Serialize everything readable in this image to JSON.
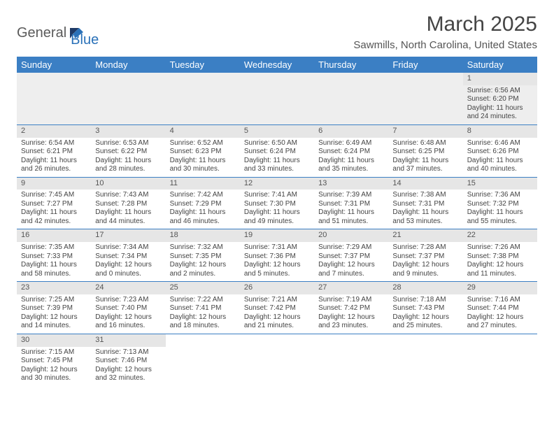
{
  "logo": {
    "part1": "General",
    "part2": "Blue"
  },
  "title": "March 2025",
  "location": "Sawmills, North Carolina, United States",
  "colors": {
    "header_bg": "#3b7fc4",
    "header_text": "#ffffff",
    "daynum_bg": "#e6e6e6",
    "border": "#3b7fc4",
    "logo_gray": "#5a5a5a",
    "logo_blue": "#2a71b8"
  },
  "day_headers": [
    "Sunday",
    "Monday",
    "Tuesday",
    "Wednesday",
    "Thursday",
    "Friday",
    "Saturday"
  ],
  "weeks": [
    [
      null,
      null,
      null,
      null,
      null,
      null,
      {
        "n": "1",
        "sr": "Sunrise: 6:56 AM",
        "ss": "Sunset: 6:20 PM",
        "dl": "Daylight: 11 hours and 24 minutes."
      }
    ],
    [
      {
        "n": "2",
        "sr": "Sunrise: 6:54 AM",
        "ss": "Sunset: 6:21 PM",
        "dl": "Daylight: 11 hours and 26 minutes."
      },
      {
        "n": "3",
        "sr": "Sunrise: 6:53 AM",
        "ss": "Sunset: 6:22 PM",
        "dl": "Daylight: 11 hours and 28 minutes."
      },
      {
        "n": "4",
        "sr": "Sunrise: 6:52 AM",
        "ss": "Sunset: 6:23 PM",
        "dl": "Daylight: 11 hours and 30 minutes."
      },
      {
        "n": "5",
        "sr": "Sunrise: 6:50 AM",
        "ss": "Sunset: 6:24 PM",
        "dl": "Daylight: 11 hours and 33 minutes."
      },
      {
        "n": "6",
        "sr": "Sunrise: 6:49 AM",
        "ss": "Sunset: 6:24 PM",
        "dl": "Daylight: 11 hours and 35 minutes."
      },
      {
        "n": "7",
        "sr": "Sunrise: 6:48 AM",
        "ss": "Sunset: 6:25 PM",
        "dl": "Daylight: 11 hours and 37 minutes."
      },
      {
        "n": "8",
        "sr": "Sunrise: 6:46 AM",
        "ss": "Sunset: 6:26 PM",
        "dl": "Daylight: 11 hours and 40 minutes."
      }
    ],
    [
      {
        "n": "9",
        "sr": "Sunrise: 7:45 AM",
        "ss": "Sunset: 7:27 PM",
        "dl": "Daylight: 11 hours and 42 minutes."
      },
      {
        "n": "10",
        "sr": "Sunrise: 7:43 AM",
        "ss": "Sunset: 7:28 PM",
        "dl": "Daylight: 11 hours and 44 minutes."
      },
      {
        "n": "11",
        "sr": "Sunrise: 7:42 AM",
        "ss": "Sunset: 7:29 PM",
        "dl": "Daylight: 11 hours and 46 minutes."
      },
      {
        "n": "12",
        "sr": "Sunrise: 7:41 AM",
        "ss": "Sunset: 7:30 PM",
        "dl": "Daylight: 11 hours and 49 minutes."
      },
      {
        "n": "13",
        "sr": "Sunrise: 7:39 AM",
        "ss": "Sunset: 7:31 PM",
        "dl": "Daylight: 11 hours and 51 minutes."
      },
      {
        "n": "14",
        "sr": "Sunrise: 7:38 AM",
        "ss": "Sunset: 7:31 PM",
        "dl": "Daylight: 11 hours and 53 minutes."
      },
      {
        "n": "15",
        "sr": "Sunrise: 7:36 AM",
        "ss": "Sunset: 7:32 PM",
        "dl": "Daylight: 11 hours and 55 minutes."
      }
    ],
    [
      {
        "n": "16",
        "sr": "Sunrise: 7:35 AM",
        "ss": "Sunset: 7:33 PM",
        "dl": "Daylight: 11 hours and 58 minutes."
      },
      {
        "n": "17",
        "sr": "Sunrise: 7:34 AM",
        "ss": "Sunset: 7:34 PM",
        "dl": "Daylight: 12 hours and 0 minutes."
      },
      {
        "n": "18",
        "sr": "Sunrise: 7:32 AM",
        "ss": "Sunset: 7:35 PM",
        "dl": "Daylight: 12 hours and 2 minutes."
      },
      {
        "n": "19",
        "sr": "Sunrise: 7:31 AM",
        "ss": "Sunset: 7:36 PM",
        "dl": "Daylight: 12 hours and 5 minutes."
      },
      {
        "n": "20",
        "sr": "Sunrise: 7:29 AM",
        "ss": "Sunset: 7:37 PM",
        "dl": "Daylight: 12 hours and 7 minutes."
      },
      {
        "n": "21",
        "sr": "Sunrise: 7:28 AM",
        "ss": "Sunset: 7:37 PM",
        "dl": "Daylight: 12 hours and 9 minutes."
      },
      {
        "n": "22",
        "sr": "Sunrise: 7:26 AM",
        "ss": "Sunset: 7:38 PM",
        "dl": "Daylight: 12 hours and 11 minutes."
      }
    ],
    [
      {
        "n": "23",
        "sr": "Sunrise: 7:25 AM",
        "ss": "Sunset: 7:39 PM",
        "dl": "Daylight: 12 hours and 14 minutes."
      },
      {
        "n": "24",
        "sr": "Sunrise: 7:23 AM",
        "ss": "Sunset: 7:40 PM",
        "dl": "Daylight: 12 hours and 16 minutes."
      },
      {
        "n": "25",
        "sr": "Sunrise: 7:22 AM",
        "ss": "Sunset: 7:41 PM",
        "dl": "Daylight: 12 hours and 18 minutes."
      },
      {
        "n": "26",
        "sr": "Sunrise: 7:21 AM",
        "ss": "Sunset: 7:42 PM",
        "dl": "Daylight: 12 hours and 21 minutes."
      },
      {
        "n": "27",
        "sr": "Sunrise: 7:19 AM",
        "ss": "Sunset: 7:42 PM",
        "dl": "Daylight: 12 hours and 23 minutes."
      },
      {
        "n": "28",
        "sr": "Sunrise: 7:18 AM",
        "ss": "Sunset: 7:43 PM",
        "dl": "Daylight: 12 hours and 25 minutes."
      },
      {
        "n": "29",
        "sr": "Sunrise: 7:16 AM",
        "ss": "Sunset: 7:44 PM",
        "dl": "Daylight: 12 hours and 27 minutes."
      }
    ],
    [
      {
        "n": "30",
        "sr": "Sunrise: 7:15 AM",
        "ss": "Sunset: 7:45 PM",
        "dl": "Daylight: 12 hours and 30 minutes."
      },
      {
        "n": "31",
        "sr": "Sunrise: 7:13 AM",
        "ss": "Sunset: 7:46 PM",
        "dl": "Daylight: 12 hours and 32 minutes."
      },
      null,
      null,
      null,
      null,
      null
    ]
  ]
}
